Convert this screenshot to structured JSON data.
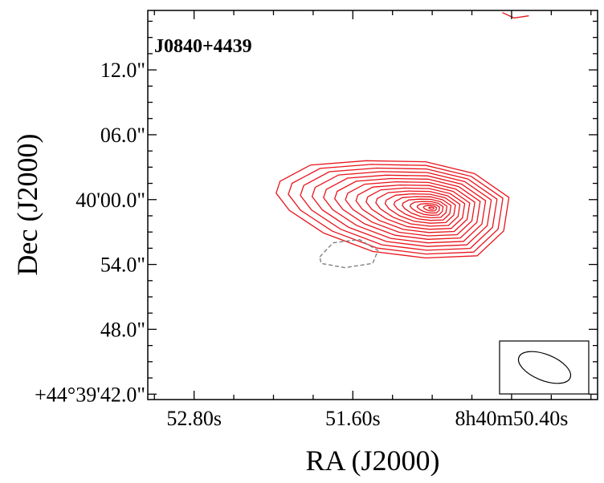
{
  "chart_data": {
    "type": "contour",
    "source_label": "J0840+4439",
    "xlabel": "RA (J2000)",
    "ylabel": "Dec (J2000)",
    "x_tick_labels": [
      "52.80s",
      "51.60s",
      "8h40m50.40s"
    ],
    "y_tick_labels": [
      "12.0\"",
      "06.0\"",
      "40'00.0\"",
      "54.0\"",
      "48.0\"",
      "+44°39'42.0\""
    ],
    "x_ticks_sec": [
      52.8,
      51.6,
      50.4
    ],
    "y_ticks_arcsec": [
      12,
      6,
      0,
      -6,
      -12,
      -18
    ],
    "xlim_sec": [
      53.15,
      49.75
    ],
    "ylim_arcsec": [
      -18.5,
      17.5
    ],
    "main_source": {
      "center_ra_sec": 51.0,
      "center_dec_arcsec": -0.8,
      "outer_contour": [
        [
          52.15,
          1.7
        ],
        [
          51.92,
          3.2
        ],
        [
          51.5,
          3.6
        ],
        [
          51.05,
          3.5
        ],
        [
          50.68,
          2.4
        ],
        [
          50.42,
          0.2
        ],
        [
          50.46,
          -2.9
        ],
        [
          50.66,
          -5.2
        ],
        [
          51.05,
          -5.4
        ],
        [
          51.45,
          -4.8
        ],
        [
          51.82,
          -3.1
        ],
        [
          52.08,
          -1.0
        ],
        [
          52.18,
          0.6
        ]
      ],
      "contour_levels": 17,
      "color": "#e8141c"
    },
    "negative_contour": {
      "points": [
        [
          51.85,
          -5.3
        ],
        [
          51.75,
          -4.0
        ],
        [
          51.55,
          -3.7
        ],
        [
          51.41,
          -4.7
        ],
        [
          51.45,
          -5.9
        ],
        [
          51.66,
          -6.3
        ],
        [
          51.84,
          -5.9
        ]
      ],
      "color": "#808080",
      "style": "dashed"
    },
    "edge_feature": {
      "points": [
        [
          50.47,
          17.3
        ],
        [
          50.38,
          16.8
        ],
        [
          50.27,
          17.0
        ]
      ],
      "color": "#e8141c"
    },
    "beam": {
      "major_arcsec": 5.1,
      "minor_arcsec": 2.4,
      "pa_deg": 68
    }
  }
}
